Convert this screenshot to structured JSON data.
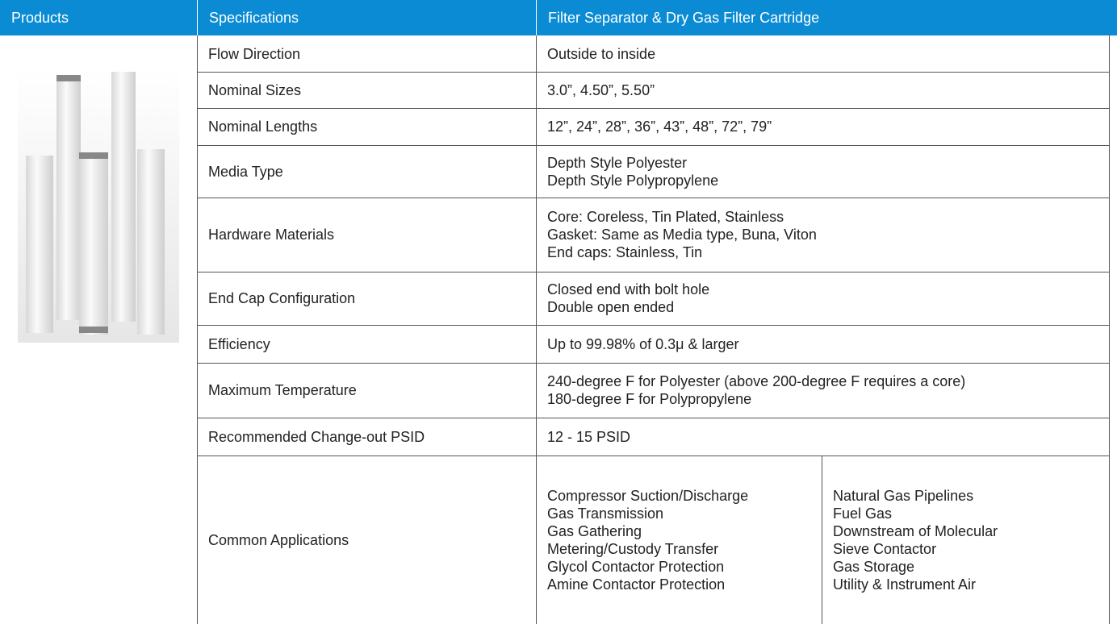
{
  "header": {
    "products": "Products",
    "specifications": "Specifications",
    "product_name": "Filter Separator & Dry Gas Filter Cartridge"
  },
  "rows": [
    {
      "label": "Flow Direction",
      "lines": [
        "Outside to inside"
      ]
    },
    {
      "label": "Nominal Sizes",
      "lines": [
        "3.0”, 4.50”, 5.50”"
      ]
    },
    {
      "label": "Nominal Lengths",
      "lines": [
        "12”, 24”, 28”, 36”, 43”, 48”, 72”, 79”"
      ]
    },
    {
      "label": "Media Type",
      "lines": [
        "Depth Style Polyester",
        "Depth Style Polypropylene"
      ]
    },
    {
      "label": "Hardware Materials",
      "lines": [
        "Core: Coreless, Tin Plated, Stainless",
        "Gasket: Same as Media type, Buna, Viton",
        "End caps: Stainless, Tin"
      ]
    },
    {
      "label": "End Cap Configuration",
      "lines": [
        "Closed end with bolt hole",
        "Double open ended"
      ]
    },
    {
      "label": "Efficiency",
      "lines": [
        "Up to 99.98% of 0.3μ & larger"
      ]
    },
    {
      "label": "Maximum Temperature",
      "lines": [
        "240-degree F for Polyester (above 200-degree F requires a core)",
        "180-degree F for Polypropylene"
      ]
    },
    {
      "label": "Recommended Change-out PSID",
      "lines": [
        "12 - 15 PSID"
      ]
    }
  ],
  "applications": {
    "label": "Common Applications",
    "left": [
      "Compressor Suction/Discharge",
      "Gas Transmission",
      "Gas Gathering",
      "Metering/Custody Transfer",
      "Glycol Contactor Protection",
      "Amine Contactor Protection"
    ],
    "right": [
      "Natural Gas Pipelines",
      "Fuel Gas",
      "Downstream of Molecular",
      "Sieve Contactor",
      "Gas Storage",
      "Utility & Instrument Air"
    ]
  }
}
